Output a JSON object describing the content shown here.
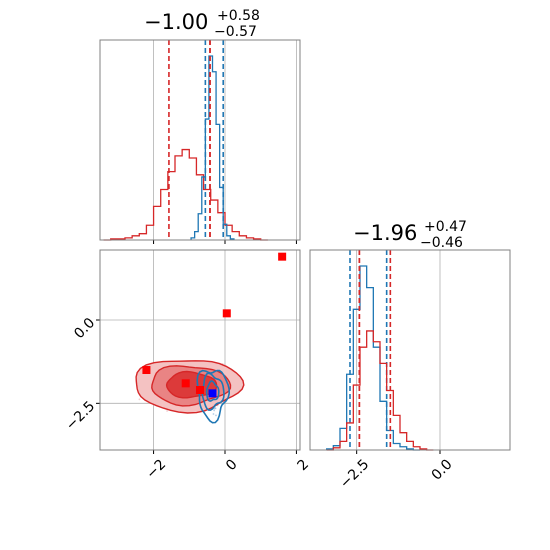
{
  "colors": {
    "red": "#d62728",
    "blue": "#1f77b4",
    "marker_red": "#ff0000",
    "marker_blue": "#0000ff",
    "grid": "#b0b0b0",
    "axes": "#808080"
  },
  "titles": {
    "p1": {
      "main": "−1.00",
      "plus": "+0.58",
      "minus": "−0.57"
    },
    "p2": {
      "main": "−1.96",
      "plus": "+0.47",
      "minus": "−0.46"
    }
  },
  "chart_data": [
    {
      "type": "histogram",
      "panel": "marginal-param-1",
      "title": "−1.00 +0.58 −0.57",
      "xlim": [
        -3.5,
        2.1
      ],
      "grid": true,
      "series": [
        {
          "color": "#d62728",
          "x": [
            -3.3,
            -3.1,
            -2.9,
            -2.7,
            -2.5,
            -2.3,
            -2.1,
            -1.9,
            -1.7,
            -1.5,
            -1.3,
            -1.1,
            -0.9,
            -0.7,
            -0.5,
            -0.3,
            -0.1,
            0.1,
            0.3,
            0.5,
            0.7,
            0.9,
            1.1
          ],
          "values": [
            0,
            1,
            1,
            2,
            4,
            6,
            14,
            32,
            48,
            65,
            80,
            86,
            78,
            62,
            48,
            38,
            26,
            14,
            8,
            4,
            2,
            1,
            0
          ],
          "quantiles": [
            -1.57,
            -0.42
          ]
        },
        {
          "color": "#1f77b4",
          "x": [
            -0.9,
            -0.8,
            -0.7,
            -0.6,
            -0.5,
            -0.4,
            -0.3,
            -0.2,
            -0.1,
            0.0,
            0.1,
            0.2
          ],
          "values": [
            2,
            8,
            25,
            60,
            115,
            175,
            160,
            110,
            50,
            15,
            4,
            1
          ],
          "quantiles": [
            -0.55,
            -0.05
          ]
        }
      ],
      "truth_line": {
        "x": -0.42,
        "color": "#d62728"
      }
    },
    {
      "type": "contour",
      "panel": "joint-param-1-param-2",
      "xlim": [
        -3.5,
        2.1
      ],
      "ylim": [
        -3.9,
        2.1
      ],
      "xticks": [
        -2,
        0,
        2
      ],
      "xtick_labels": [
        "−2",
        "0",
        "2"
      ],
      "yticks": [
        0.0,
        -2.5
      ],
      "ytick_labels": [
        "0.0",
        "−2.5"
      ],
      "grid": true,
      "points": [
        {
          "x": 1.6,
          "y": 1.9,
          "color": "#ff0000"
        },
        {
          "x": 0.05,
          "y": 0.2,
          "color": "#ff0000"
        },
        {
          "x": -2.2,
          "y": -1.5,
          "color": "#ff0000"
        },
        {
          "x": -1.1,
          "y": -1.9,
          "color": "#ff0000"
        },
        {
          "x": -0.7,
          "y": -2.1,
          "color": "#ff0000"
        },
        {
          "x": -0.35,
          "y": -2.2,
          "color": "#0000ff"
        }
      ]
    },
    {
      "type": "histogram",
      "panel": "marginal-param-2",
      "title": "−1.96 +0.47 −0.46",
      "xlim": [
        -3.9,
        2.1
      ],
      "xticks": [
        -2.5,
        0.0
      ],
      "xtick_labels": [
        "−2.5",
        "0.0"
      ],
      "grid": true,
      "series": [
        {
          "color": "#1f77b4",
          "x": [
            -3.3,
            -3.1,
            -2.9,
            -2.7,
            -2.5,
            -2.3,
            -2.1,
            -1.9,
            -1.7,
            -1.5,
            -1.3,
            -1.1,
            -0.9,
            -0.7
          ],
          "values": [
            1,
            4,
            20,
            70,
            130,
            170,
            150,
            95,
            45,
            18,
            6,
            3,
            1,
            0
          ],
          "quantiles": [
            -2.7,
            -1.6
          ]
        },
        {
          "color": "#d62728",
          "x": [
            -3.3,
            -3.1,
            -2.9,
            -2.7,
            -2.5,
            -2.3,
            -2.1,
            -1.9,
            -1.7,
            -1.5,
            -1.3,
            -1.1,
            -0.9,
            -0.7,
            -0.5,
            -0.3
          ],
          "values": [
            0,
            2,
            8,
            25,
            60,
            95,
            110,
            100,
            80,
            55,
            32,
            16,
            8,
            3,
            1,
            0
          ],
          "quantiles": [
            -2.42,
            -1.49
          ]
        }
      ],
      "truth_line": {
        "x": -2.42,
        "color": "#d62728"
      }
    }
  ]
}
